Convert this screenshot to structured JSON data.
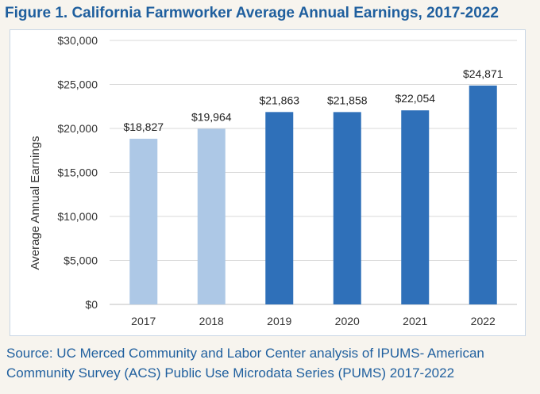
{
  "figure": {
    "title": "Figure 1. California Farmworker Average Annual Earnings, 2017-2022",
    "source": "Source: UC Merced Community and Labor Center analysis of IPUMS- American Community Survey (ACS) Public Use Microdata Series (PUMS) 2017-2022"
  },
  "chart_data": {
    "type": "bar",
    "title": "",
    "xlabel": "",
    "ylabel": "Average Annual Earnings",
    "categories": [
      "2017",
      "2018",
      "2019",
      "2020",
      "2021",
      "2022"
    ],
    "values": [
      18827,
      19964,
      21863,
      21858,
      22054,
      24871
    ],
    "data_labels": [
      "$18,827",
      "$19,964",
      "$21,863",
      "$21,858",
      "$22,054",
      "$24,871"
    ],
    "bar_colors": [
      "#adc8e6",
      "#adc8e6",
      "#2f70b9",
      "#2f70b9",
      "#2f70b9",
      "#2f70b9"
    ],
    "ylim": [
      0,
      30000
    ],
    "yticks": [
      0,
      5000,
      10000,
      15000,
      20000,
      25000,
      30000
    ],
    "ytick_labels": [
      "$0",
      "$5,000",
      "$10,000",
      "$15,000",
      "$20,000",
      "$25,000",
      "$30,000"
    ],
    "grid": true,
    "legend": "none"
  }
}
